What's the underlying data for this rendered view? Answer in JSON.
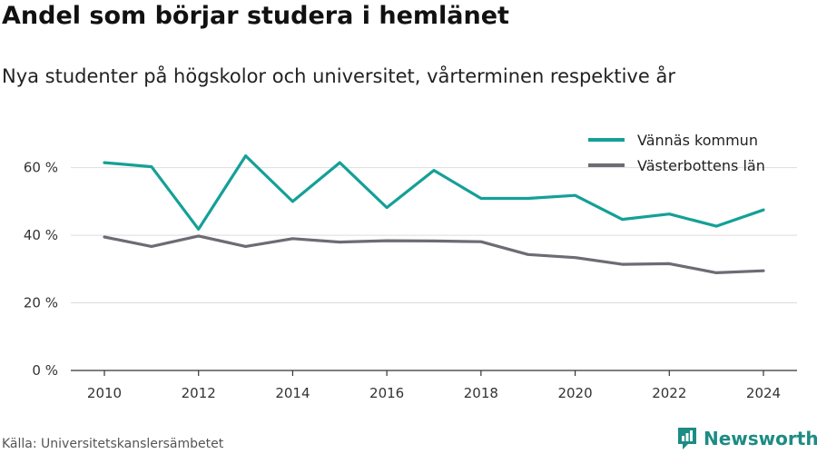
{
  "header": {
    "title": "Andel som börjar studera i hemlänet",
    "subtitle": "Nya studenter på högskolor och universitet, vårterminen respektive år"
  },
  "footer": {
    "source": "Källa: Universitetskanslersämbetet",
    "brand": "Newsworthy",
    "brand_icon": "newsworthy-logo-icon",
    "brand_color": "#1c8c84"
  },
  "chart_data": {
    "type": "line",
    "title": "Andel som börjar studera i hemlänet",
    "subtitle": "Nya studenter på högskolor och universitet, vårterminen respektive år",
    "xlabel": "",
    "ylabel": "",
    "x": [
      2010,
      2011,
      2012,
      2013,
      2014,
      2015,
      2016,
      2017,
      2018,
      2019,
      2020,
      2021,
      2022,
      2023,
      2024
    ],
    "x_ticks": [
      2010,
      2012,
      2014,
      2016,
      2018,
      2020,
      2022,
      2024
    ],
    "y_ticks": [
      0,
      20,
      40,
      60
    ],
    "y_tick_labels": [
      "0 %",
      "20 %",
      "40 %",
      "60 %"
    ],
    "ylim": [
      0,
      72
    ],
    "y_unit": "%",
    "grid": "horizontal",
    "legend_position": "top-right",
    "series": [
      {
        "name": "Vännäs kommun",
        "color": "#14a097",
        "values": [
          61.5,
          60.3,
          41.8,
          63.5,
          50.0,
          61.5,
          48.2,
          59.2,
          50.9,
          50.9,
          51.8,
          44.7,
          46.3,
          42.7,
          47.5
        ]
      },
      {
        "name": "Västerbottens län",
        "color": "#6d6b73",
        "values": [
          39.5,
          36.7,
          39.8,
          36.7,
          39.0,
          38.0,
          38.4,
          38.3,
          38.1,
          34.3,
          33.4,
          31.4,
          31.6,
          28.9,
          29.5
        ]
      }
    ]
  }
}
